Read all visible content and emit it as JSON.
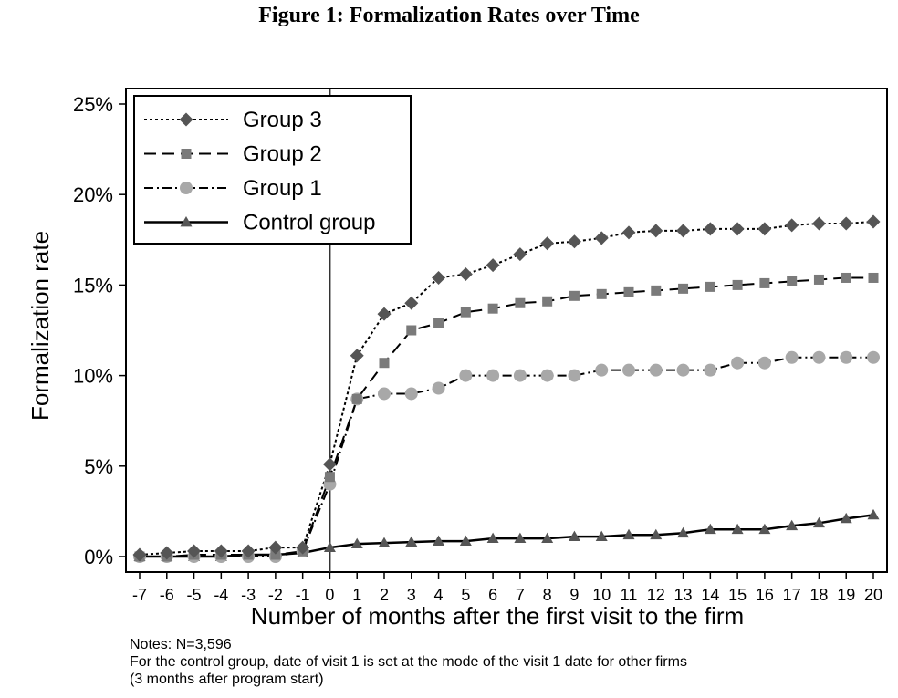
{
  "title": "Figure 1: Formalization Rates over Time",
  "notes": [
    "Notes: N=3,596",
    "For the control group, date of visit 1 is set at the mode of the visit 1 date for other firms",
    "(3 months after program start)"
  ],
  "chart_data": {
    "type": "line",
    "title": "Figure 1: Formalization Rates over Time",
    "xlabel": "Number of months after the first visit to the firm",
    "ylabel": "Formalization rate",
    "xlim": [
      -7,
      20
    ],
    "ylim": [
      0,
      25
    ],
    "x": [
      -7,
      -6,
      -5,
      -4,
      -3,
      -2,
      -1,
      0,
      1,
      2,
      3,
      4,
      5,
      6,
      7,
      8,
      9,
      10,
      11,
      12,
      13,
      14,
      15,
      16,
      17,
      18,
      19,
      20
    ],
    "x_tick_labels": [
      "-7",
      "-6",
      "-5",
      "-4",
      "-3",
      "-2",
      "-1",
      "0",
      "1",
      "2",
      "3",
      "4",
      "5",
      "6",
      "7",
      "8",
      "9",
      "10",
      "11",
      "12",
      "13",
      "14",
      "15",
      "16",
      "17",
      "18",
      "19",
      "20"
    ],
    "y_ticks": [
      0,
      5,
      10,
      15,
      20,
      25
    ],
    "y_tick_labels": [
      "0%",
      "5%",
      "10%",
      "15%",
      "20%",
      "25%"
    ],
    "vertical_reference_line_x": 0,
    "grid": false,
    "legend_position": "top-left",
    "series": [
      {
        "name": "Group 3",
        "line_style": "dotted",
        "marker": "diamond",
        "color": "#555555",
        "values": [
          0.1,
          0.2,
          0.3,
          0.3,
          0.3,
          0.5,
          0.5,
          5.1,
          11.1,
          13.4,
          14.0,
          15.4,
          15.6,
          16.1,
          16.7,
          17.3,
          17.4,
          17.6,
          17.9,
          18.0,
          18.0,
          18.1,
          18.1,
          18.1,
          18.3,
          18.4,
          18.4,
          18.5
        ]
      },
      {
        "name": "Group 2",
        "line_style": "dashed",
        "marker": "square",
        "color": "#7a7a7a",
        "values": [
          0.0,
          0.0,
          0.1,
          0.1,
          0.1,
          0.1,
          0.3,
          4.4,
          8.7,
          10.7,
          12.5,
          12.9,
          13.5,
          13.7,
          14.0,
          14.1,
          14.4,
          14.5,
          14.6,
          14.7,
          14.8,
          14.9,
          15.0,
          15.1,
          15.2,
          15.3,
          15.4,
          15.4
        ]
      },
      {
        "name": "Group 1",
        "line_style": "dash-dot",
        "marker": "circle",
        "color": "#a8a8a8",
        "values": [
          0.0,
          0.0,
          0.0,
          0.0,
          0.0,
          0.0,
          0.3,
          4.0,
          8.7,
          9.0,
          9.0,
          9.3,
          10.0,
          10.0,
          10.0,
          10.0,
          10.0,
          10.3,
          10.3,
          10.3,
          10.3,
          10.3,
          10.7,
          10.7,
          11.0,
          11.0,
          11.0,
          11.0
        ]
      },
      {
        "name": "Control group",
        "line_style": "solid",
        "marker": "triangle",
        "color": "#555555",
        "values": [
          0.0,
          0.0,
          0.0,
          0.0,
          0.1,
          0.1,
          0.2,
          0.5,
          0.7,
          0.75,
          0.8,
          0.85,
          0.85,
          1.0,
          1.0,
          1.0,
          1.1,
          1.1,
          1.2,
          1.2,
          1.3,
          1.5,
          1.5,
          1.5,
          1.7,
          1.85,
          2.1,
          2.3
        ]
      }
    ]
  }
}
